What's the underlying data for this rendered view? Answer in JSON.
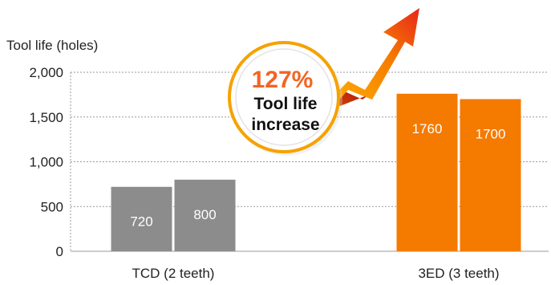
{
  "chart_data": {
    "type": "bar",
    "ylabel": "Tool life (holes)",
    "ylim": [
      0,
      2000
    ],
    "yticks": [
      0,
      500,
      1000,
      1500,
      2000
    ],
    "ytick_labels": [
      "0",
      "500",
      "1,000",
      "1,500",
      "2,000"
    ],
    "grid": true,
    "categories": [
      "TCD (2 teeth)",
      "3ED (3 teeth)"
    ],
    "groups": [
      {
        "category": "TCD (2 teeth)",
        "values": [
          720,
          800
        ],
        "labels": [
          "720",
          "800"
        ],
        "color": "#8c8c8c"
      },
      {
        "category": "3ED (3 teeth)",
        "values": [
          1760,
          1700
        ],
        "labels": [
          "1760",
          "1700"
        ],
        "color": "#f57a00"
      }
    ],
    "annotation": {
      "percent": "127%",
      "line1": "Tool life",
      "line2": "increase",
      "arrow_color": "#f57a00",
      "text_color": "#f26522"
    }
  }
}
